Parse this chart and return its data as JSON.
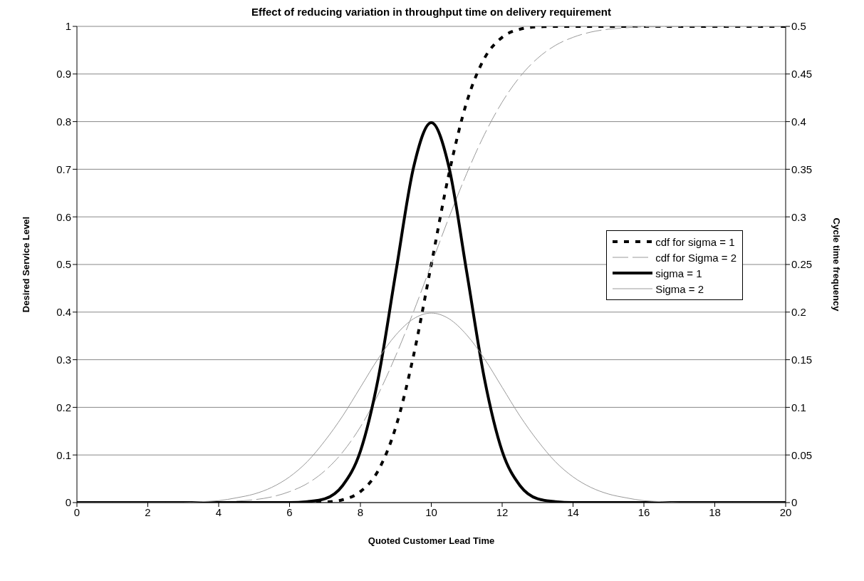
{
  "chart_data": {
    "type": "line",
    "title": "Effect of reducing variation in throughput time on delivery requirement",
    "xlabel": "Quoted Customer Lead Time",
    "ylabel": "Desired Service Level",
    "y2label": "Cycle time frequency",
    "x": [
      0,
      0.5,
      1,
      1.5,
      2,
      2.5,
      3,
      3.5,
      4,
      4.5,
      5,
      5.5,
      6,
      6.5,
      7,
      7.5,
      8,
      8.5,
      9,
      9.5,
      10,
      10.5,
      11,
      11.5,
      12,
      12.5,
      13,
      13.5,
      14,
      14.5,
      15,
      15.5,
      16,
      16.5,
      17,
      17.5,
      18,
      18.5,
      19,
      19.5,
      20
    ],
    "series": [
      {
        "name": "cdf for sigma = 1",
        "color": "#000000",
        "line_style": "dashed",
        "values": [
          0,
          0,
          0,
          0,
          0,
          0,
          0,
          0,
          0,
          0,
          0,
          0,
          0,
          0,
          0.001,
          0.006,
          0.023,
          0.067,
          0.159,
          0.309,
          0.5,
          0.691,
          0.841,
          0.933,
          0.977,
          0.994,
          0.999,
          1,
          1,
          1,
          1,
          1,
          1,
          1,
          1,
          1,
          1,
          1,
          1,
          1,
          1
        ]
      },
      {
        "name": "cdf for Sigma = 2",
        "color": "#999999",
        "line_style": "dashed",
        "values": [
          0,
          0,
          0,
          0,
          0,
          0,
          0,
          0.001,
          0.001,
          0.003,
          0.006,
          0.012,
          0.023,
          0.04,
          0.067,
          0.106,
          0.159,
          0.227,
          0.309,
          0.401,
          0.5,
          0.599,
          0.691,
          0.773,
          0.841,
          0.894,
          0.933,
          0.96,
          0.977,
          0.988,
          0.994,
          0.997,
          0.999,
          0.999,
          1,
          1,
          1,
          1,
          1,
          1,
          1
        ]
      },
      {
        "name": "sigma = 1",
        "color": "#000000",
        "line_style": "solid",
        "axis": "y2",
        "values": [
          0,
          0,
          0,
          0,
          0,
          0,
          0,
          0,
          0,
          0,
          0,
          0,
          0,
          0.001,
          0.004,
          0.018,
          0.054,
          0.13,
          0.242,
          0.352,
          0.399,
          0.352,
          0.242,
          0.13,
          0.054,
          0.018,
          0.004,
          0.001,
          0,
          0,
          0,
          0,
          0,
          0,
          0,
          0,
          0,
          0,
          0,
          0,
          0
        ]
      },
      {
        "name": "Sigma = 2",
        "color": "#999999",
        "line_style": "solid",
        "axis": "y2",
        "values": [
          0,
          0,
          0,
          0,
          0,
          0,
          0,
          0.001,
          0.002,
          0.005,
          0.009,
          0.016,
          0.027,
          0.043,
          0.065,
          0.091,
          0.121,
          0.151,
          0.176,
          0.193,
          0.199,
          0.193,
          0.176,
          0.151,
          0.121,
          0.091,
          0.065,
          0.043,
          0.027,
          0.016,
          0.009,
          0.005,
          0.002,
          0.001,
          0,
          0,
          0,
          0,
          0,
          0,
          0
        ]
      }
    ],
    "xlim": [
      0,
      20
    ],
    "xticks": [
      0,
      2,
      4,
      6,
      8,
      10,
      12,
      14,
      16,
      18,
      20
    ],
    "ylim": [
      0,
      1
    ],
    "yticks": [
      0,
      0.1,
      0.2,
      0.3,
      0.4,
      0.5,
      0.6,
      0.7,
      0.8,
      0.9,
      1
    ],
    "y2lim": [
      0,
      0.5
    ],
    "y2ticks": [
      0,
      0.05,
      0.1,
      0.15,
      0.2,
      0.25,
      0.3,
      0.35,
      0.4,
      0.45,
      0.5
    ],
    "grid": "y",
    "legend": "right",
    "marker": "none"
  }
}
